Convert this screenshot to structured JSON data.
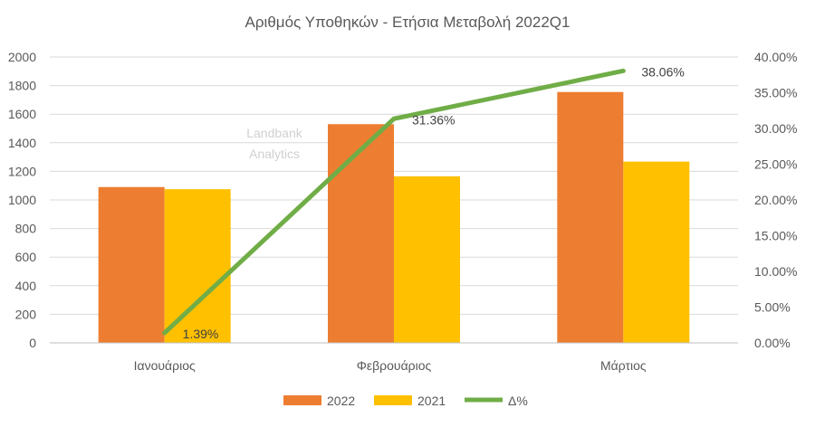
{
  "chart_data": {
    "type": "bar",
    "title": "Αριθμός Υποθηκών - Ετήσια Μεταβολή 2022Q1",
    "watermark": [
      "Landbank",
      "Analytics"
    ],
    "categories": [
      "Ιανουάριος",
      "Φεβρουάριος",
      "Μάρτιος"
    ],
    "series": [
      {
        "name": "2022",
        "kind": "bar",
        "axis": "left",
        "color": "#ED7D31",
        "values": [
          1090,
          1530,
          1755
        ]
      },
      {
        "name": "2021",
        "kind": "bar",
        "axis": "left",
        "color": "#FFC000",
        "values": [
          1075,
          1165,
          1268
        ]
      },
      {
        "name": "Δ%",
        "kind": "line",
        "axis": "right",
        "color": "#70AD47",
        "values": [
          1.39,
          31.36,
          38.06
        ],
        "labels": [
          "1.39%",
          "31.36%",
          "38.06%"
        ]
      }
    ],
    "y_left": {
      "min": 0,
      "max": 2000,
      "step": 200,
      "ticks": [
        "0",
        "200",
        "400",
        "600",
        "800",
        "1000",
        "1200",
        "1400",
        "1600",
        "1800",
        "2000"
      ]
    },
    "y_right": {
      "min": 0,
      "max": 40,
      "step": 5,
      "ticks": [
        "0.00%",
        "5.00%",
        "10.00%",
        "15.00%",
        "20.00%",
        "25.00%",
        "30.00%",
        "35.00%",
        "40.00%"
      ]
    },
    "grid": true,
    "legend": "bottom"
  }
}
